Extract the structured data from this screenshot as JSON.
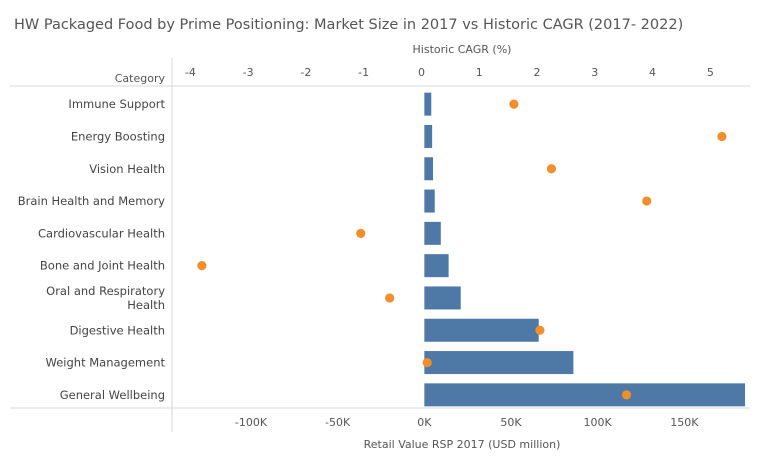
{
  "chart_data": {
    "type": "bar",
    "title": "HW Packaged Food by Prime Positioning: Market Size in 2017 vs Historic CAGR (2017- 2022)",
    "category_header": "Category",
    "categories": [
      "Immune Support",
      "Energy Boosting",
      "Vision Health",
      "Brain Health and Memory",
      "Cardiovascular Health",
      "Bone and Joint Health",
      "Oral and Respiratory Health",
      "Digestive Health",
      "Weight Management",
      "General Wellbeing"
    ],
    "category_lines": [
      [
        "Immune Support"
      ],
      [
        "Energy Boosting"
      ],
      [
        "Vision Health"
      ],
      [
        "Brain Health and Memory"
      ],
      [
        "Cardiovascular Health"
      ],
      [
        "Bone and Joint Health"
      ],
      [
        "Oral and Respiratory",
        "Health"
      ],
      [
        "Digestive Health"
      ],
      [
        "Weight Management"
      ],
      [
        "General Wellbeing"
      ]
    ],
    "series": [
      {
        "name": "Retail Value RSP 2017 (USD million)",
        "mark": "bar",
        "color": "#4e79a7",
        "values": [
          4000,
          4500,
          5000,
          6000,
          9500,
          14000,
          21000,
          66000,
          86000,
          185000
        ]
      },
      {
        "name": "Historic CAGR (%)",
        "mark": "dot",
        "color": "#f28e2b",
        "values": [
          1.6,
          5.2,
          2.25,
          3.9,
          -1.05,
          -3.8,
          -0.55,
          2.05,
          0.1,
          3.55
        ]
      }
    ],
    "x_bottom": {
      "label": "Retail Value RSP 2017 (USD million)",
      "range": [
        -145000,
        185000
      ],
      "ticks": [
        -100000,
        -50000,
        0,
        50000,
        100000,
        150000
      ],
      "tick_labels": [
        "-100K",
        "-50K",
        "0K",
        "50K",
        "100K",
        "150K"
      ]
    },
    "x_top": {
      "label": "Historic CAGR (%)",
      "range": [
        -4.3,
        5.6
      ],
      "ticks": [
        -4,
        -3,
        -2,
        -1,
        0,
        1,
        2,
        3,
        4,
        5
      ],
      "tick_labels": [
        "-4",
        "-3",
        "-2",
        "-1",
        "0",
        "1",
        "2",
        "3",
        "4",
        "5"
      ]
    },
    "grid": false
  }
}
